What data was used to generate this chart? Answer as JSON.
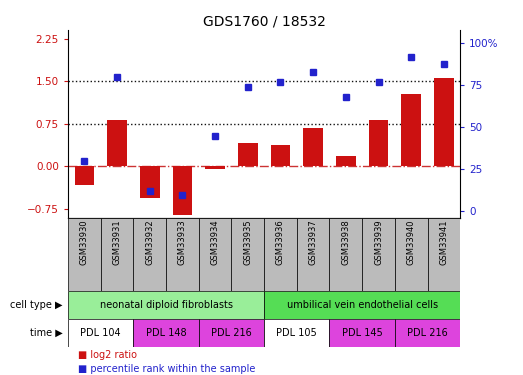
{
  "title": "GDS1760 / 18532",
  "samples": [
    "GSM33930",
    "GSM33931",
    "GSM33932",
    "GSM33933",
    "GSM33934",
    "GSM33935",
    "GSM33936",
    "GSM33937",
    "GSM33938",
    "GSM33939",
    "GSM33940",
    "GSM33941"
  ],
  "log2_ratio": [
    -0.32,
    0.82,
    -0.55,
    -0.85,
    -0.04,
    0.42,
    0.38,
    0.68,
    0.18,
    0.82,
    1.27,
    1.55
  ],
  "percentile_rank": [
    30,
    80,
    12,
    10,
    45,
    74,
    77,
    83,
    68,
    77,
    92,
    88
  ],
  "ylim_left": [
    -0.9,
    2.4
  ],
  "ylim_right": [
    -3.6,
    108
  ],
  "yticks_left": [
    -0.75,
    0.0,
    0.75,
    1.5,
    2.25
  ],
  "yticks_right": [
    0,
    25,
    50,
    75,
    100
  ],
  "hlines": [
    0.75,
    1.5
  ],
  "bar_color": "#cc1111",
  "dot_color": "#2222cc",
  "zero_line_color": "#cc3333",
  "hline_color": "#111111",
  "cell_type_groups": [
    {
      "label": "neonatal diploid fibroblasts",
      "start": 0,
      "end": 5,
      "color": "#99ee99"
    },
    {
      "label": "umbilical vein endothelial cells",
      "start": 6,
      "end": 11,
      "color": "#55dd55"
    }
  ],
  "time_groups": [
    {
      "label": "PDL 104",
      "start": 0,
      "end": 1,
      "color": "#ffffff"
    },
    {
      "label": "PDL 148",
      "start": 2,
      "end": 3,
      "color": "#dd44dd"
    },
    {
      "label": "PDL 216",
      "start": 4,
      "end": 5,
      "color": "#dd44dd"
    },
    {
      "label": "PDL 105",
      "start": 6,
      "end": 7,
      "color": "#ffffff"
    },
    {
      "label": "PDL 145",
      "start": 8,
      "end": 9,
      "color": "#dd44dd"
    },
    {
      "label": "PDL 216",
      "start": 10,
      "end": 11,
      "color": "#dd44dd"
    }
  ],
  "cell_type_label": "cell type",
  "time_label": "time",
  "legend_log2": "log2 ratio",
  "legend_pct": "percentile rank within the sample",
  "sample_box_color": "#bbbbbb"
}
